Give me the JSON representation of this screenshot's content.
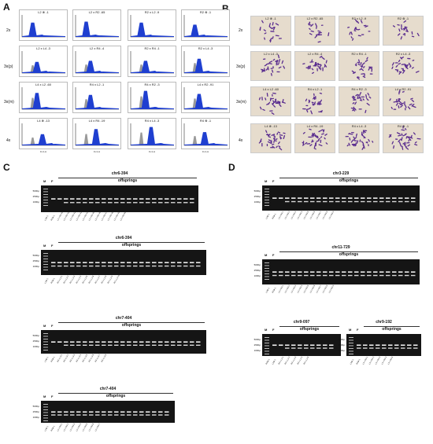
{
  "panels": {
    "A": "A",
    "B": "B",
    "C": "C",
    "D": "D"
  },
  "ploidy_rows": [
    "2x",
    "3x(p)",
    "3x(m)",
    "4x"
  ],
  "flow_axis": "FL3-H",
  "cell_titles": [
    [
      "L2 ⊗ -1",
      "L2 x R2 -65",
      "R2 x L2 -9",
      "R2 ⊗ -1"
    ],
    [
      "L2 x L4 -3",
      "L2 x R4 -4",
      "R2 x R4 -1",
      "R2 x L4 -3"
    ],
    [
      "L4 x L2 -60",
      "R4 x L2 -1",
      "R4 x R2 -3",
      "L4 x R2 -91"
    ],
    [
      "L4 ⊗ -13",
      "L4 x R4 -19",
      "R4 x L4 -3",
      "R4 ⊗ -1"
    ]
  ],
  "gels": [
    {
      "title": "chr6-394",
      "offspring": "offsprings",
      "m": "M",
      "f": "F",
      "bp": [
        "500bp",
        "250bp",
        "100bp"
      ]
    },
    {
      "title": "chr6-394",
      "offspring": "offsprings",
      "m": "M",
      "f": "F",
      "bp": [
        "500bp",
        "250bp",
        "100bp"
      ]
    },
    {
      "title": "chr7-404",
      "offspring": "offsprings",
      "m": "M",
      "f": "F",
      "bp": [
        "500bp",
        "250bp",
        "100bp"
      ]
    },
    {
      "title": "chr7-404",
      "offspring": "offsprings",
      "m": "M",
      "f": "F",
      "bp": [
        "500bp",
        "250bp",
        "100bp"
      ]
    },
    {
      "title": "chr3-229",
      "offspring": "offsprings",
      "m": "M",
      "f": "F",
      "bp": [
        "500bp",
        "250bp",
        "100bp"
      ]
    },
    {
      "title": "chr11-729",
      "offspring": "offsprings",
      "m": "M",
      "f": "F",
      "bp": [
        "500bp",
        "250bp",
        "100bp"
      ]
    },
    {
      "title": "chr9-097",
      "offspring": "offsprings",
      "m": "M",
      "f": "F",
      "bp": [
        "500bp",
        "250bp",
        "100bp"
      ]
    },
    {
      "title": "chr9-192",
      "offspring": "offsprings",
      "m": "M",
      "f": "F",
      "bp": [
        "500bp",
        "250bp",
        "100bp"
      ]
    }
  ],
  "gel_lanes": [
    [
      "L2⊗-1",
      "R2⊗-1",
      "L2 x R2-40",
      "L2 x R2-41",
      "L2 x R2-42",
      "L2 x R2-43",
      "L2 x R2-44",
      "L2 x R2-45",
      "L2 x R2-46",
      "L2 x R2-47",
      "L2 x R2-48",
      "L2 x R2-49",
      "L2 x R2-50"
    ],
    [
      "L2⊗-1",
      "R2⊗-1",
      "R2 x L2-1",
      "R2 x L2-2",
      "R2 x L2-3",
      "R2 x L2-4",
      "R2 x L2-5",
      "R2 x L2-6",
      "R2 x L2-7",
      "R2 x L2-8",
      "R2 x L2-9",
      "R2 x L2-10"
    ],
    [
      "L4⊗-1",
      "R4⊗-1",
      "R4 x L4-1",
      "R4 x L4-2",
      "R4 x L4-3",
      "R4 x L4-4",
      "R4 x L4-5",
      "R4 x L4-6",
      "R4 x L4-7",
      "R4 x L4-8"
    ],
    [
      "L2⊗-1",
      "R4⊗-1",
      "L2 x R4-1",
      "L2 x R4-2",
      "L2 x R4-3",
      "L2 x R4-4",
      "L2 x R4-5",
      "L2 x R4-6",
      "L2 x R4-7"
    ],
    [
      "L2⊗-1",
      "R4⊗-1",
      "L4 x R4-1",
      "L4 x R4-2",
      "L4 x R4-3",
      "L4 x R4-4",
      "L4 x R4-5",
      "L4 x R4-6",
      "L4 x R4-7",
      "L4 x R4-8",
      "L4 x R4-9"
    ],
    [
      "L4⊗-1",
      "R2⊗-1",
      "L4 x R2-1",
      "L4 x R2-2",
      "L4 x R2-3",
      "L4 x R2-4",
      "L4 x R2-5",
      "L4 x R2-6",
      "L4 x R2-7",
      "L4 x R2-8",
      "L4 x R2-9"
    ],
    [
      "R4⊗-1",
      "L2⊗-1",
      "R4 x L2-1",
      "R4 x L2-2",
      "R4 x L2-3",
      "R4 x L2-4",
      "R4 x L2-5"
    ],
    [
      "L4⊗-1",
      "R4⊗-1",
      "L4 x R4-1",
      "L4 x R4-2",
      "L4 x R4-3",
      "L4 x R4-4",
      "L4 x R4-5"
    ]
  ]
}
